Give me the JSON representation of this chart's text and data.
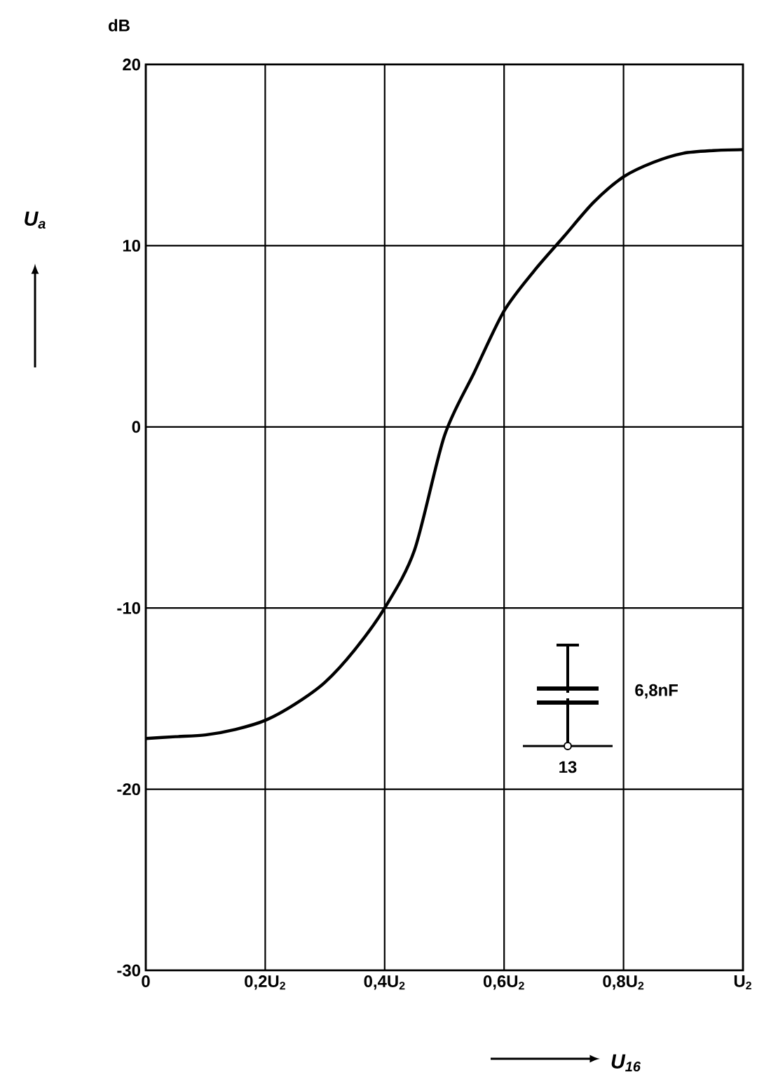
{
  "chart_data": {
    "type": "line",
    "xlabel": "U$_{16}$",
    "ylabel": "U$_{a}$",
    "annotations": [
      "dB",
      "6,8nF",
      "13"
    ],
    "categories": [
      "0",
      null,
      null,
      null,
      "0,2U$_{2}$",
      null,
      null,
      null,
      "0,4U$_{2}$",
      null,
      null,
      null,
      "0,6U$_{2}$",
      null,
      null,
      null,
      "0,8U$_{2}$",
      null,
      null,
      null,
      "U$_{2}$"
    ],
    "series": [
      {
        "color": "#000000",
        "values": [
          -17.2,
          -17.1,
          -17.0,
          -16.7,
          -16.2,
          -15.3,
          -14.1,
          -12.3,
          -10,
          -6.8,
          -0.5,
          3.0,
          6.4,
          8.6,
          10.5,
          12.4,
          13.8,
          14.6,
          15.1,
          15.25,
          15.3
        ]
      }
    ],
    "ylim": [
      -30,
      20
    ],
    "yticks": [
      -30,
      -20,
      -10,
      0,
      10,
      20
    ],
    "grid": true,
    "marker": "none",
    "line_style": "solid"
  }
}
